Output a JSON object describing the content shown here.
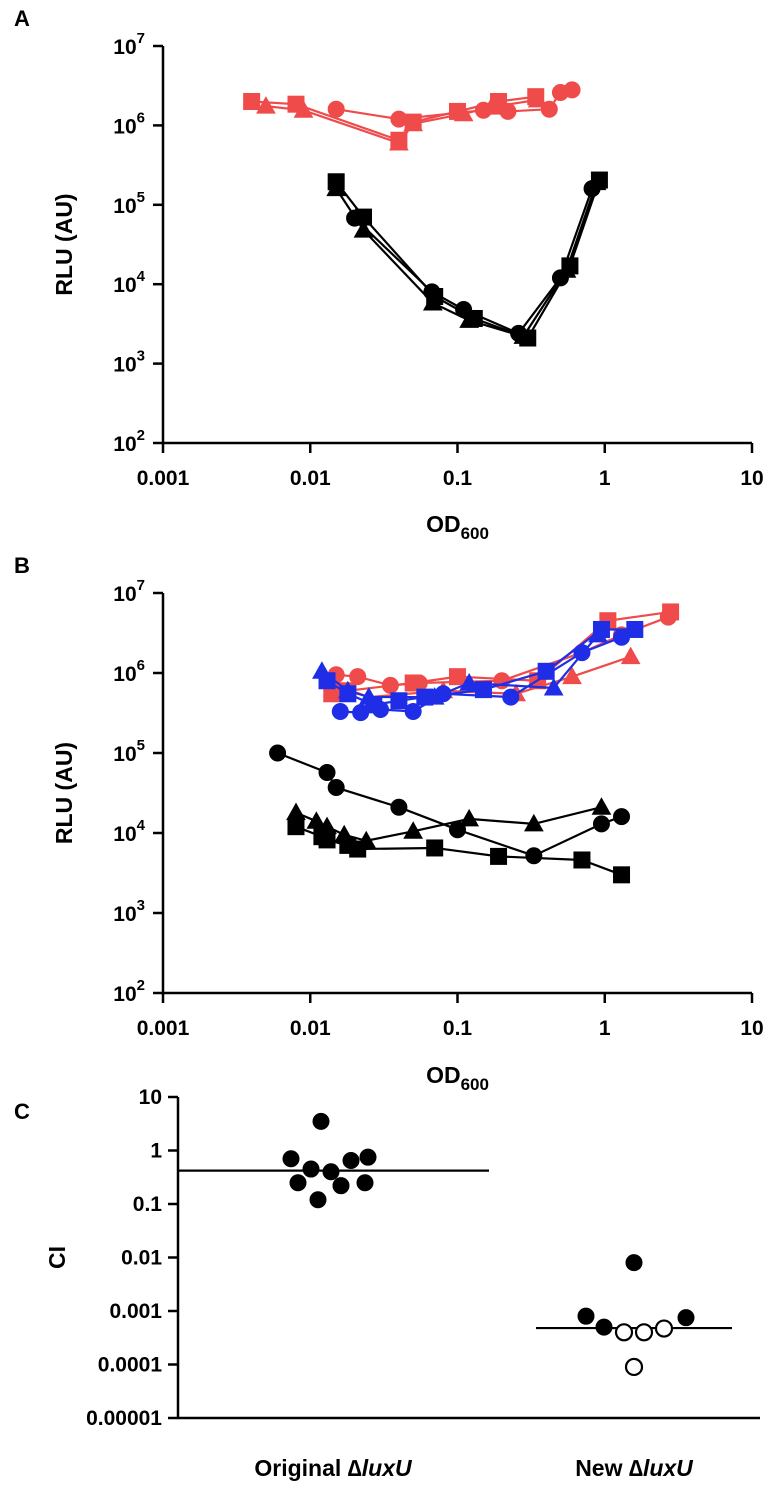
{
  "figure": {
    "background": "#ffffff"
  },
  "colors": {
    "red": "#f04b4b",
    "blue": "#1f2ee6",
    "black": "#000000"
  },
  "chart_data": [
    {
      "id": "A",
      "type": "scatter",
      "panel_label": "A",
      "xscale": "log",
      "yscale": "log",
      "xlim": [
        0.001,
        10
      ],
      "ylim": [
        100,
        10000000
      ],
      "x_ticks": [
        {
          "value": 0.001,
          "label": "0.001"
        },
        {
          "value": 0.01,
          "label": "0.01"
        },
        {
          "value": 0.1,
          "label": "0.1"
        },
        {
          "value": 1,
          "label": "1"
        },
        {
          "value": 10,
          "label": "10"
        }
      ],
      "y_ticks": [
        {
          "value": 100,
          "base": "10",
          "exp": "2"
        },
        {
          "value": 1000,
          "base": "10",
          "exp": "3"
        },
        {
          "value": 10000,
          "base": "10",
          "exp": "4"
        },
        {
          "value": 100000,
          "base": "10",
          "exp": "5"
        },
        {
          "value": 1000000,
          "base": "10",
          "exp": "6"
        },
        {
          "value": 10000000,
          "base": "10",
          "exp": "7"
        }
      ],
      "xlabel_main": "OD",
      "xlabel_sub": "600",
      "ylabel": "RLU (AU)",
      "grid": false,
      "series": [
        {
          "color": "#f04b4b",
          "marker": "square",
          "points": [
            [
              0.004,
              2000000
            ],
            [
              0.008,
              1850000
            ],
            [
              0.04,
              650000
            ],
            [
              0.05,
              1100000
            ],
            [
              0.1,
              1500000
            ],
            [
              0.19,
              2000000
            ],
            [
              0.34,
              2300000
            ]
          ]
        },
        {
          "color": "#f04b4b",
          "marker": "triangle",
          "points": [
            [
              0.005,
              1750000
            ],
            [
              0.009,
              1550000
            ],
            [
              0.04,
              600000
            ],
            [
              0.05,
              1050000
            ],
            [
              0.11,
              1400000
            ],
            [
              0.17,
              1700000
            ],
            [
              0.35,
              2100000
            ]
          ]
        },
        {
          "color": "#f04b4b",
          "marker": "circle",
          "points": [
            [
              0.015,
              1600000
            ],
            [
              0.04,
              1200000
            ],
            [
              0.15,
              1550000
            ],
            [
              0.22,
              1500000
            ],
            [
              0.42,
              1600000
            ],
            [
              0.5,
              2600000
            ],
            [
              0.6,
              2800000
            ]
          ]
        },
        {
          "color": "#000000",
          "marker": "square",
          "points": [
            [
              0.015,
              195000
            ],
            [
              0.023,
              70000
            ],
            [
              0.07,
              7000
            ],
            [
              0.13,
              3700
            ],
            [
              0.3,
              2100
            ],
            [
              0.58,
              17000
            ],
            [
              0.92,
              205000
            ]
          ]
        },
        {
          "color": "#000000",
          "marker": "triangle",
          "points": [
            [
              0.015,
              160000
            ],
            [
              0.023,
              48000
            ],
            [
              0.068,
              5800
            ],
            [
              0.12,
              3500
            ],
            [
              0.28,
              2200
            ],
            [
              0.55,
              15000
            ],
            [
              0.88,
              190000
            ]
          ]
        },
        {
          "color": "#000000",
          "marker": "circle",
          "points": [
            [
              0.02,
              68000
            ],
            [
              0.067,
              8000
            ],
            [
              0.11,
              4800
            ],
            [
              0.26,
              2400
            ],
            [
              0.5,
              12000
            ],
            [
              0.82,
              160000
            ]
          ]
        }
      ]
    },
    {
      "id": "B",
      "type": "scatter",
      "panel_label": "B",
      "xscale": "log",
      "yscale": "log",
      "xlim": [
        0.001,
        10
      ],
      "ylim": [
        100,
        10000000
      ],
      "x_ticks": [
        {
          "value": 0.001,
          "label": "0.001"
        },
        {
          "value": 0.01,
          "label": "0.01"
        },
        {
          "value": 0.1,
          "label": "0.1"
        },
        {
          "value": 1,
          "label": "1"
        },
        {
          "value": 10,
          "label": "10"
        }
      ],
      "y_ticks": [
        {
          "value": 100,
          "base": "10",
          "exp": "2"
        },
        {
          "value": 1000,
          "base": "10",
          "exp": "3"
        },
        {
          "value": 10000,
          "base": "10",
          "exp": "4"
        },
        {
          "value": 100000,
          "base": "10",
          "exp": "5"
        },
        {
          "value": 1000000,
          "base": "10",
          "exp": "6"
        },
        {
          "value": 10000000,
          "base": "10",
          "exp": "7"
        }
      ],
      "xlabel_main": "OD",
      "xlabel_sub": "600",
      "ylabel": "RLU (AU)",
      "grid": false,
      "series": [
        {
          "color": "#f04b4b",
          "marker": "square",
          "points": [
            [
              0.014,
              550000
            ],
            [
              0.018,
              600000
            ],
            [
              0.05,
              750000
            ],
            [
              0.1,
              900000
            ],
            [
              0.35,
              800000
            ],
            [
              1.05,
              4500000
            ],
            [
              2.8,
              5800000
            ]
          ]
        },
        {
          "color": "#f04b4b",
          "marker": "triangle",
          "points": [
            [
              0.015,
              700000
            ],
            [
              0.025,
              500000
            ],
            [
              0.08,
              600000
            ],
            [
              0.25,
              550000
            ],
            [
              0.6,
              900000
            ],
            [
              1.5,
              1600000
            ]
          ]
        },
        {
          "color": "#f04b4b",
          "marker": "circle",
          "points": [
            [
              0.015,
              950000
            ],
            [
              0.021,
              900000
            ],
            [
              0.035,
              700000
            ],
            [
              0.055,
              750000
            ],
            [
              0.2,
              800000
            ],
            [
              0.7,
              1800000
            ],
            [
              1.3,
              3000000
            ],
            [
              2.7,
              5000000
            ]
          ]
        },
        {
          "color": "#1f2ee6",
          "marker": "triangle",
          "points": [
            [
              0.012,
              1050000
            ],
            [
              0.018,
              600000
            ],
            [
              0.025,
              500000
            ],
            [
              0.07,
              500000
            ],
            [
              0.12,
              750000
            ],
            [
              0.45,
              650000
            ],
            [
              0.9,
              3000000
            ]
          ]
        },
        {
          "color": "#1f2ee6",
          "marker": "square",
          "points": [
            [
              0.013,
              800000
            ],
            [
              0.018,
              550000
            ],
            [
              0.027,
              400000
            ],
            [
              0.04,
              450000
            ],
            [
              0.06,
              500000
            ],
            [
              0.15,
              620000
            ],
            [
              0.4,
              1050000
            ],
            [
              0.95,
              3500000
            ],
            [
              1.6,
              3500000
            ]
          ]
        },
        {
          "color": "#1f2ee6",
          "marker": "circle",
          "points": [
            [
              0.016,
              330000
            ],
            [
              0.022,
              320000
            ],
            [
              0.03,
              350000
            ],
            [
              0.05,
              330000
            ],
            [
              0.08,
              550000
            ],
            [
              0.23,
              500000
            ],
            [
              0.7,
              1800000
            ],
            [
              1.3,
              2800000
            ]
          ]
        },
        {
          "color": "#000000",
          "marker": "circle",
          "points": [
            [
              0.006,
              100000
            ],
            [
              0.013,
              57000
            ],
            [
              0.015,
              37000
            ],
            [
              0.04,
              21000
            ],
            [
              0.1,
              11000
            ],
            [
              0.33,
              5200
            ],
            [
              0.95,
              13000
            ],
            [
              1.3,
              16000
            ]
          ]
        },
        {
          "color": "#000000",
          "marker": "triangle",
          "points": [
            [
              0.008,
              18000
            ],
            [
              0.011,
              14000
            ],
            [
              0.013,
              12000
            ],
            [
              0.017,
              9500
            ],
            [
              0.024,
              8000
            ],
            [
              0.05,
              10500
            ],
            [
              0.12,
              15000
            ],
            [
              0.33,
              13000
            ],
            [
              0.95,
              21000
            ]
          ]
        },
        {
          "color": "#000000",
          "marker": "square",
          "points": [
            [
              0.008,
              12000
            ],
            [
              0.012,
              9000
            ],
            [
              0.013,
              8200
            ],
            [
              0.018,
              7000
            ],
            [
              0.021,
              6300
            ],
            [
              0.07,
              6500
            ],
            [
              0.19,
              5100
            ],
            [
              0.7,
              4600
            ],
            [
              1.3,
              3000
            ]
          ]
        }
      ]
    },
    {
      "id": "C",
      "type": "scatter",
      "panel_label": "C",
      "yscale": "log",
      "ylim": [
        1e-05,
        10
      ],
      "y_ticks": [
        {
          "value": 10,
          "label": "10"
        },
        {
          "value": 1,
          "label": "1"
        },
        {
          "value": 0.1,
          "label": "0.1"
        },
        {
          "value": 0.01,
          "label": "0.01"
        },
        {
          "value": 0.001,
          "label": "0.001"
        },
        {
          "value": 0.0001,
          "label": "0.0001"
        },
        {
          "value": 1e-05,
          "label": "0.00001"
        }
      ],
      "ylabel": "CI",
      "grid": false,
      "categories": [
        {
          "prefix": "Original ∆",
          "italic": "luxU"
        },
        {
          "prefix": "New ∆",
          "italic": "luxU"
        }
      ],
      "groups": [
        {
          "median": 0.42,
          "points": [
            {
              "offset": -0.12,
              "y": 3.5,
              "filled": true
            },
            {
              "offset": -0.42,
              "y": 0.7,
              "filled": true
            },
            {
              "offset": -0.22,
              "y": 0.45,
              "filled": true
            },
            {
              "offset": -0.02,
              "y": 0.4,
              "filled": true
            },
            {
              "offset": 0.18,
              "y": 0.65,
              "filled": true
            },
            {
              "offset": 0.35,
              "y": 0.75,
              "filled": true
            },
            {
              "offset": -0.35,
              "y": 0.25,
              "filled": true
            },
            {
              "offset": 0.08,
              "y": 0.22,
              "filled": true
            },
            {
              "offset": 0.32,
              "y": 0.25,
              "filled": true
            },
            {
              "offset": -0.15,
              "y": 0.12,
              "filled": true
            }
          ]
        },
        {
          "median": 0.00048,
          "points": [
            {
              "offset": 0.0,
              "y": 0.008,
              "filled": true
            },
            {
              "offset": -0.48,
              "y": 0.0008,
              "filled": true
            },
            {
              "offset": -0.3,
              "y": 0.0005,
              "filled": true
            },
            {
              "offset": 0.52,
              "y": 0.00075,
              "filled": true
            },
            {
              "offset": -0.1,
              "y": 0.0004,
              "filled": false
            },
            {
              "offset": 0.1,
              "y": 0.0004,
              "filled": false
            },
            {
              "offset": 0.3,
              "y": 0.00047,
              "filled": false
            },
            {
              "offset": 0.0,
              "y": 9e-05,
              "filled": false
            }
          ]
        }
      ]
    }
  ]
}
